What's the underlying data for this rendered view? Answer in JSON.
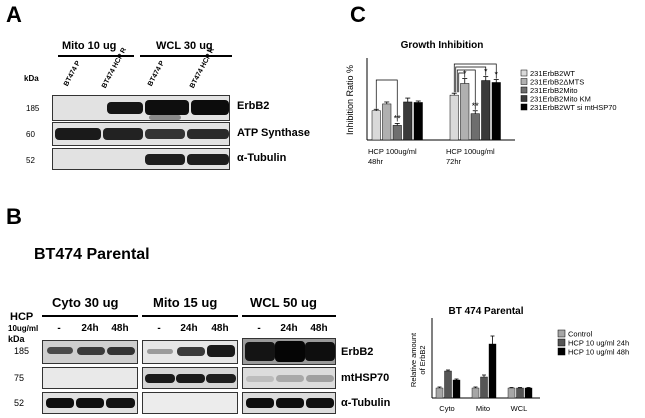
{
  "panel_a": {
    "letter": "A",
    "kda": "kDa",
    "group1": "Mito 10 ug",
    "group2": "WCL 30 ug",
    "lane1": "BT474 P",
    "lane2": "BT474 HCP R",
    "lane3": "BT474 P",
    "lane4": "BT474 HCP R",
    "mw": [
      "185",
      "60",
      "52"
    ],
    "rows": [
      "ErbB2",
      "ATP Synthase",
      "α-Tubulin"
    ]
  },
  "panel_b": {
    "letter": "B",
    "title": "BT474 Parental",
    "hcp": "HCP",
    "dose_unit": "10ug/ml",
    "kda": "kDa",
    "groups": [
      "Cyto 30 ug",
      "Mito 15 ug",
      "WCL 50 ug"
    ],
    "conditions": [
      "-",
      "24h",
      "48h"
    ],
    "mw": [
      "185",
      "75",
      "52"
    ],
    "rows": [
      "ErbB2",
      "mtHSP70",
      "α-Tubulin"
    ]
  },
  "panel_c": {
    "letter": "C",
    "title": "Growth Inhibition",
    "ylabel": "Inhibition Ratio %",
    "sig": {
      "double": "**",
      "single": "*"
    }
  },
  "chart_data": [
    {
      "type": "bar",
      "title": "Growth Inhibition",
      "ylabel": "Inhibition Ratio %",
      "xlabel": "",
      "categories": [
        "HCP 100ug/ml 48hr",
        "HCP 100ug/ml 72hr"
      ],
      "category_lines": [
        [
          "HCP 100ug/ml",
          "48hr"
        ],
        [
          "HCP 100ug/ml",
          "72hr"
        ]
      ],
      "series": [
        {
          "name": "231ErbB2WT",
          "values": [
            30,
            46
          ],
          "errors": [
            1.5,
            2
          ],
          "color": "#d9d9d9"
        },
        {
          "name": "231ErbB2ΔMTS",
          "values": [
            37,
            58
          ],
          "errors": [
            2,
            5
          ],
          "color": "#b0b0b0"
        },
        {
          "name": "231ErbB2Mito",
          "values": [
            15,
            27
          ],
          "errors": [
            2,
            3
          ],
          "color": "#6e6e6e"
        },
        {
          "name": "231ErbB2Mito KM",
          "values": [
            39,
            61
          ],
          "errors": [
            4,
            4
          ],
          "color": "#3a3a3a"
        },
        {
          "name": "231ErbB2WT si mtHSP70",
          "values": [
            38.5,
            59
          ],
          "errors": [
            1.5,
            3
          ],
          "color": "#000000"
        }
      ],
      "significance": [
        [
          null,
          null,
          "**",
          null,
          null
        ],
        [
          null,
          "*",
          "**",
          "*",
          "*"
        ]
      ],
      "ylim": [
        0,
        80
      ],
      "axis_ticks_shown": false,
      "grid": false,
      "legend_position": "right"
    },
    {
      "type": "bar",
      "title": "BT 474 Parental",
      "ylabel": "Relative amount of ErbB2",
      "ylabel_lines": [
        "Relative amount",
        "of ErbB2"
      ],
      "xlabel": "",
      "categories": [
        "Cyto",
        "Mito",
        "WCL"
      ],
      "series": [
        {
          "name": "Control",
          "values": [
            1.0,
            1.0,
            1.0
          ],
          "errors": [
            0.1,
            0.1,
            0.05
          ],
          "color": "#a6a6a6"
        },
        {
          "name": "HCP 10 ug/ml 24h",
          "values": [
            2.7,
            2.1,
            1.0
          ],
          "errors": [
            0.1,
            0.2,
            0.05
          ],
          "color": "#555555"
        },
        {
          "name": "HCP 10 ug/ml 48h",
          "values": [
            1.8,
            5.4,
            1.0
          ],
          "errors": [
            0.1,
            0.8,
            0.05
          ],
          "color": "#000000"
        }
      ],
      "ylim": [
        0,
        8
      ],
      "axis_ticks_shown": false,
      "grid": false,
      "legend_position": "right"
    }
  ]
}
